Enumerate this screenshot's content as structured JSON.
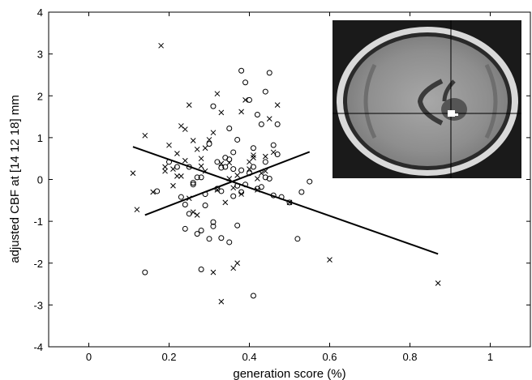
{
  "chart_data": {
    "type": "scatter",
    "xlabel": "generation score (%)",
    "ylabel": "adjusted CBF at [14  12  18] mm",
    "xlim": [
      -0.1,
      1.1
    ],
    "ylim": [
      -4,
      4
    ],
    "xticks": [
      {
        "value": 0,
        "label": "0"
      },
      {
        "value": 0.2,
        "label": "0.2"
      },
      {
        "value": 0.4,
        "label": "0.4"
      },
      {
        "value": 0.6,
        "label": "0.6"
      },
      {
        "value": 0.8,
        "label": "0.8"
      },
      {
        "value": 1,
        "label": "1"
      }
    ],
    "yticks": [
      {
        "value": -4,
        "label": "-4"
      },
      {
        "value": -3,
        "label": "-3"
      },
      {
        "value": -2,
        "label": "-2"
      },
      {
        "value": -1,
        "label": "-1"
      },
      {
        "value": 0,
        "label": "0"
      },
      {
        "value": 1,
        "label": "1"
      },
      {
        "value": 2,
        "label": "2"
      },
      {
        "value": 3,
        "label": "3"
      },
      {
        "value": 4,
        "label": "4"
      }
    ],
    "grid": false,
    "inset": "axial brain MRI slice with crosshair, top-right",
    "series": [
      {
        "marker": "x",
        "x": [
          0.18,
          0.14,
          0.11,
          0.12,
          0.16,
          0.19,
          0.2,
          0.21,
          0.22,
          0.23,
          0.24,
          0.25,
          0.26,
          0.27,
          0.28,
          0.29,
          0.3,
          0.31,
          0.32,
          0.33,
          0.34,
          0.35,
          0.36,
          0.37,
          0.38,
          0.39,
          0.4,
          0.41,
          0.42,
          0.43,
          0.44,
          0.45,
          0.46,
          0.47,
          0.5,
          0.6,
          0.87,
          0.33,
          0.37,
          0.38,
          0.31,
          0.26,
          0.24,
          0.29,
          0.35,
          0.22,
          0.21,
          0.19,
          0.25,
          0.28,
          0.41,
          0.42,
          0.44,
          0.32,
          0.36,
          0.4,
          0.23,
          0.27,
          0.33
        ],
        "y": [
          3.2,
          1.05,
          0.15,
          -0.72,
          -0.3,
          0.2,
          0.82,
          0.25,
          0.62,
          1.28,
          1.2,
          1.78,
          0.93,
          -0.85,
          0.5,
          0.2,
          0.95,
          1.12,
          2.05,
          1.6,
          -0.55,
          0.4,
          -2.12,
          -2.0,
          1.62,
          1.9,
          0.25,
          0.52,
          -0.25,
          0.15,
          0.2,
          1.45,
          0.65,
          1.78,
          -0.55,
          -1.92,
          -2.48,
          -2.92,
          0.1,
          -0.35,
          -2.22,
          -0.78,
          0.45,
          0.75,
          0.02,
          0.08,
          -0.15,
          0.3,
          -0.45,
          0.32,
          0.58,
          0.02,
          0.55,
          -0.25,
          -0.2,
          0.42,
          0.08,
          0.72,
          0.38
        ]
      },
      {
        "marker": "o",
        "x": [
          0.14,
          0.17,
          0.2,
          0.22,
          0.23,
          0.24,
          0.25,
          0.26,
          0.27,
          0.28,
          0.28,
          0.29,
          0.3,
          0.31,
          0.31,
          0.32,
          0.33,
          0.33,
          0.34,
          0.35,
          0.35,
          0.36,
          0.36,
          0.37,
          0.37,
          0.38,
          0.38,
          0.39,
          0.4,
          0.4,
          0.41,
          0.41,
          0.42,
          0.42,
          0.43,
          0.44,
          0.44,
          0.45,
          0.45,
          0.46,
          0.46,
          0.47,
          0.47,
          0.48,
          0.5,
          0.52,
          0.53,
          0.55,
          0.28,
          0.41,
          0.25,
          0.3,
          0.38,
          0.33,
          0.31,
          0.27,
          0.34,
          0.36,
          0.43,
          0.39,
          0.29,
          0.32,
          0.26,
          0.24,
          0.35,
          0.44,
          0.37
        ],
        "y": [
          -2.22,
          -0.28,
          0.42,
          0.3,
          -0.42,
          -1.18,
          -0.82,
          -0.08,
          -1.3,
          -2.15,
          0.05,
          -0.62,
          -1.42,
          -1.02,
          1.75,
          0.42,
          -1.4,
          0.28,
          0.52,
          1.22,
          -1.5,
          0.65,
          -0.4,
          0.95,
          -1.1,
          2.6,
          -0.3,
          2.32,
          1.9,
          0.15,
          -2.78,
          0.75,
          1.55,
          -0.22,
          1.32,
          2.1,
          0.05,
          2.55,
          0.02,
          0.82,
          -0.38,
          1.32,
          0.6,
          -0.42,
          -0.55,
          -1.42,
          -0.3,
          -0.05,
          -1.22,
          0.3,
          0.3,
          0.85,
          0.22,
          -0.28,
          -1.12,
          0.05,
          0.3,
          0.25,
          -0.18,
          -0.12,
          -0.35,
          -0.22,
          -0.12,
          -0.6,
          0.48,
          0.42,
          -0.15
        ]
      }
    ],
    "fit_lines": [
      {
        "x": [
          0.11,
          0.87
        ],
        "y": [
          0.78,
          -1.78
        ]
      },
      {
        "x": [
          0.14,
          0.55
        ],
        "y": [
          -0.85,
          0.66
        ]
      }
    ]
  }
}
